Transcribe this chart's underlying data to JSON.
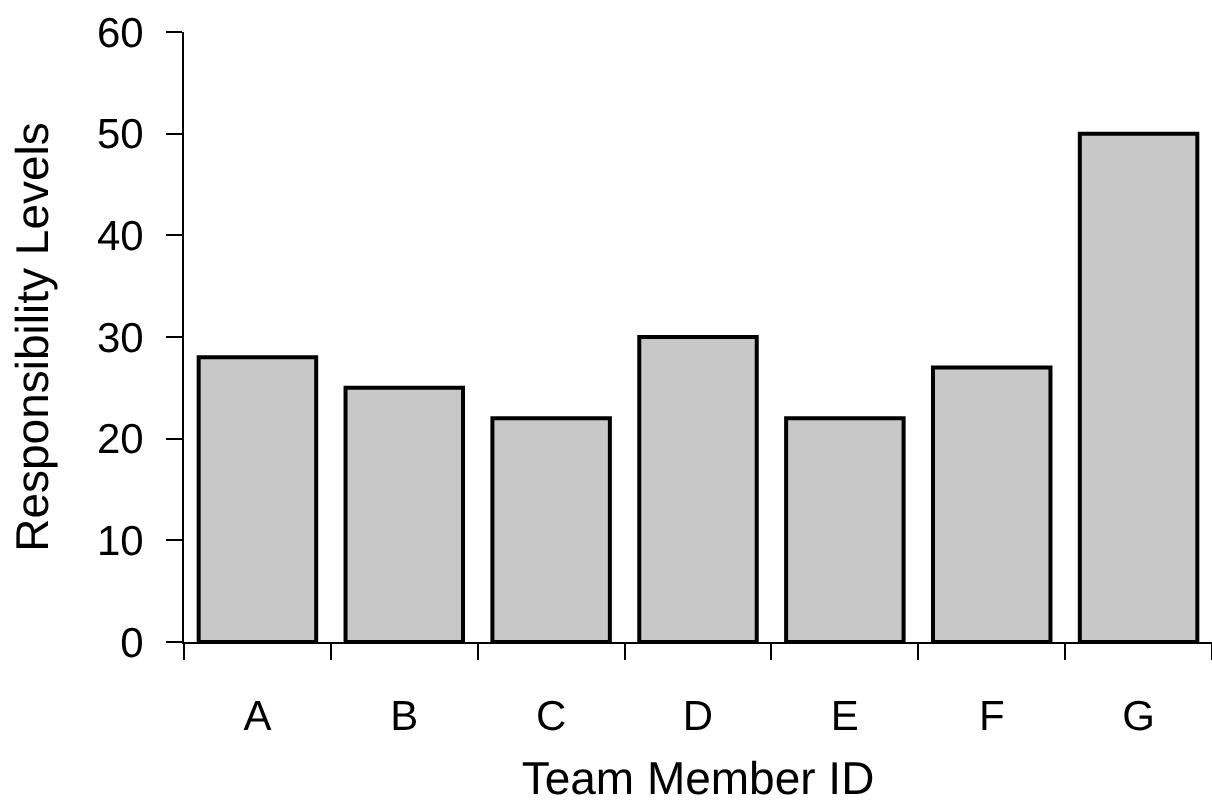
{
  "chart_data": {
    "type": "bar",
    "xlabel": "Team Member ID",
    "ylabel": "Responsibility Levels",
    "categories": [
      "A",
      "B",
      "C",
      "D",
      "E",
      "F",
      "G"
    ],
    "values": [
      28,
      25,
      22,
      30,
      22,
      27,
      50
    ],
    "color": "#c8c8c8",
    "ylim": [
      0,
      60
    ],
    "yticks": [
      0,
      10,
      20,
      30,
      40,
      50,
      60
    ]
  }
}
